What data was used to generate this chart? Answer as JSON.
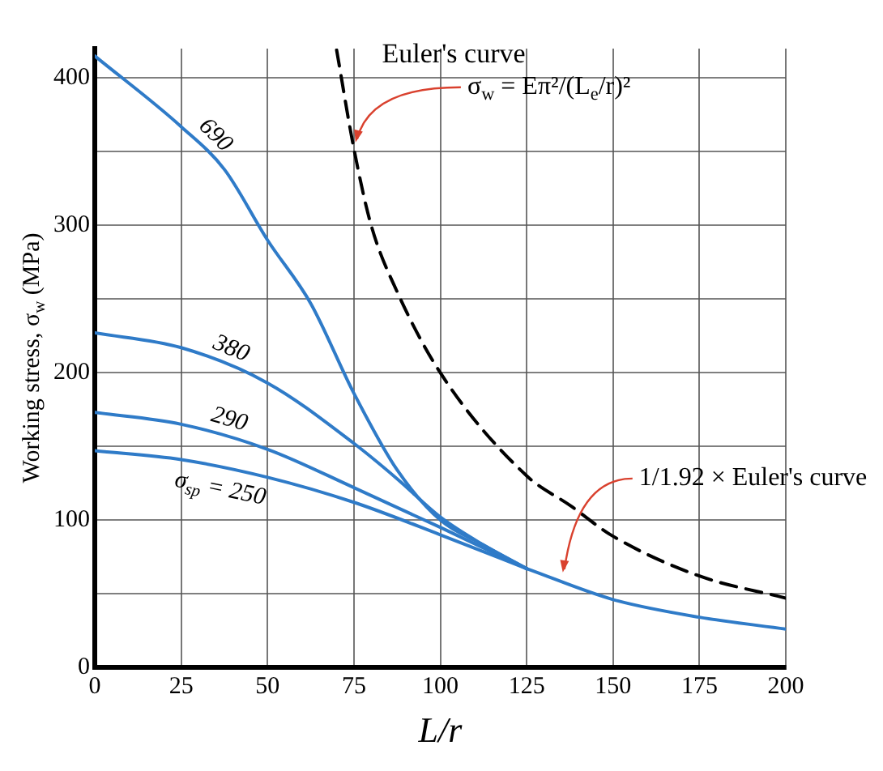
{
  "chart_data": {
    "type": "line",
    "xlabel": "L/r",
    "ylabel": "Working stress, σ$_{w}$ (MPa)",
    "xlim": [
      0,
      200
    ],
    "xticks": [
      0,
      25,
      50,
      75,
      100,
      125,
      150,
      175,
      200
    ],
    "ylim": [
      0,
      420
    ],
    "yticks": [
      0,
      {
        "value": 50,
        "label": null
      },
      100,
      {
        "value": 150,
        "label": null
      },
      200,
      {
        "value": 250,
        "label": null
      },
      300,
      {
        "value": 350,
        "label": null
      },
      400
    ],
    "grid": true,
    "legend": false,
    "marker": "none",
    "series": [
      {
        "name": "690",
        "color": "#2f7bc8",
        "x": [
          0,
          25,
          37.5,
          50,
          62.5,
          75,
          87.5,
          100,
          112.5,
          125
        ],
        "values": [
          415,
          367,
          338,
          290,
          247,
          186,
          134,
          100,
          83,
          67
        ]
      },
      {
        "name": "380",
        "color": "#2f7bc8",
        "x": [
          0,
          25,
          50,
          75,
          87.5,
          100,
          112.5,
          125
        ],
        "values": [
          227,
          217,
          193,
          152,
          128,
          102,
          83,
          67
        ]
      },
      {
        "name": "290",
        "color": "#2f7bc8",
        "x": [
          0,
          25,
          50,
          75,
          100,
          125
        ],
        "values": [
          173,
          165,
          148,
          122,
          95,
          67
        ]
      },
      {
        "name": "σ$_{sp}$ = 250",
        "color": "#2f7bc8",
        "x": [
          0,
          25,
          50,
          75,
          100,
          125
        ],
        "values": [
          147,
          141,
          129,
          112,
          90,
          67
        ]
      },
      {
        "color": "#2f7bc8",
        "x": [
          125,
          150,
          175,
          200
        ],
        "values": [
          67,
          46,
          34,
          26
        ]
      },
      {
        "name": "Euler's curve",
        "color": "#000000",
        "line_style": "dashed",
        "x": [
          70,
          75,
          80,
          87.5,
          100,
          125,
          137.5,
          150,
          175,
          200
        ],
        "values": [
          419,
          352,
          300,
          255,
          200,
          130,
          110,
          89,
          62,
          47
        ]
      }
    ],
    "annotations": [
      {
        "text": "σ$_{w}$ = Eπ²/(L$_{e}$/r)²",
        "x": 75,
        "y": 352
      },
      {
        "text": "1/1.92 × Euler's curve",
        "x": 135,
        "y": 60
      }
    ]
  }
}
